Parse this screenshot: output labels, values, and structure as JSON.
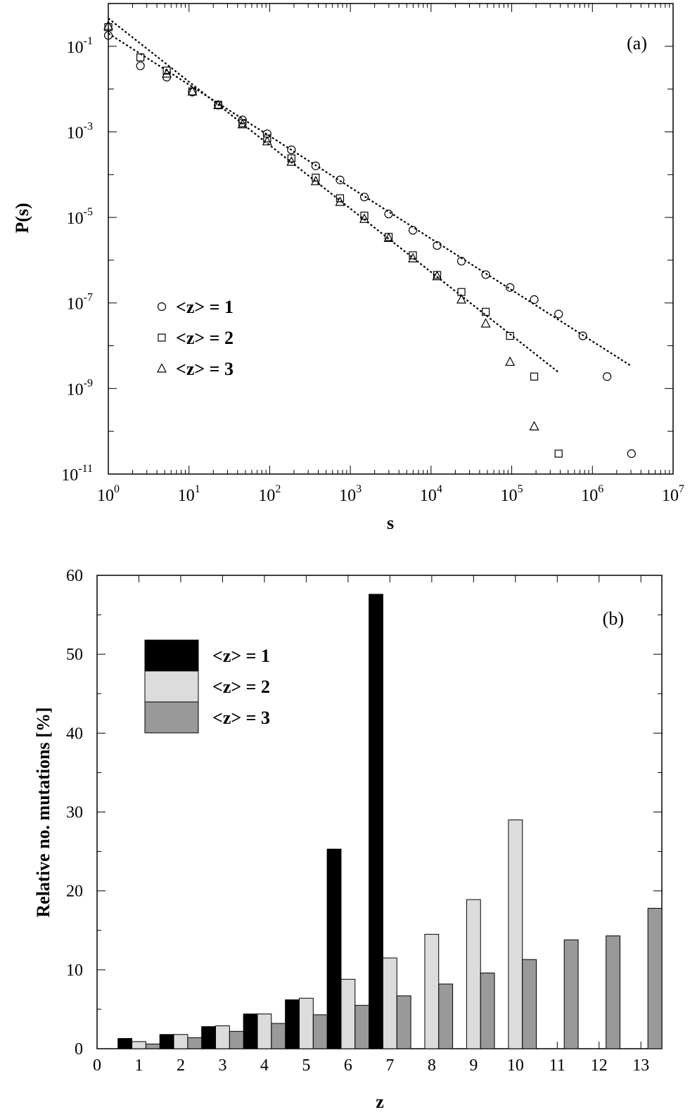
{
  "chart_data": [
    {
      "type": "scatter",
      "panel_label": "(a)",
      "xlabel": "s",
      "ylabel": "P(s)",
      "x_scale": "log",
      "y_scale": "log",
      "xlim": [
        1,
        10000000
      ],
      "ylim": [
        1e-11,
        1
      ],
      "x_ticks": [
        {
          "value": 1,
          "base": "10",
          "exp": "0"
        },
        {
          "value": 10,
          "base": "10",
          "exp": "1"
        },
        {
          "value": 100,
          "base": "10",
          "exp": "2"
        },
        {
          "value": 1000,
          "base": "10",
          "exp": "3"
        },
        {
          "value": 10000,
          "base": "10",
          "exp": "4"
        },
        {
          "value": 100000,
          "base": "10",
          "exp": "5"
        },
        {
          "value": 1000000,
          "base": "10",
          "exp": "6"
        },
        {
          "value": 10000000,
          "base": "10",
          "exp": "7"
        }
      ],
      "y_ticks": [
        {
          "value": 0.1,
          "base": "10",
          "exp": "-1"
        },
        {
          "value": 0.001,
          "base": "10",
          "exp": "-3"
        },
        {
          "value": 1e-05,
          "base": "10",
          "exp": "-5"
        },
        {
          "value": 1e-07,
          "base": "10",
          "exp": "-7"
        },
        {
          "value": 1e-09,
          "base": "10",
          "exp": "-9"
        },
        {
          "value": 1e-11,
          "base": "10",
          "exp": "-11"
        }
      ],
      "legend_position": "left-middle",
      "series": [
        {
          "name": "<z> = 1",
          "marker": "circle",
          "x": [
            1,
            2.5,
            5.3,
            11,
            23,
            46,
            93,
            186,
            372,
            745,
            1490,
            2980,
            5960,
            11900,
            23800,
            47600,
            95300,
            190000,
            381000,
            762000,
            1520000,
            3050000
          ],
          "y": [
            0.18,
            0.035,
            0.019,
            0.0085,
            0.0042,
            0.0019,
            0.0009,
            0.00038,
            0.00016,
            7.5e-05,
            3e-05,
            1.2e-05,
            5e-06,
            2.2e-06,
            9.5e-07,
            4.6e-07,
            2.3e-07,
            1.2e-07,
            5.5e-08,
            1.7e-08,
            1.9e-09,
            3e-11
          ]
        },
        {
          "name": "<z> = 2",
          "marker": "square",
          "x": [
            1,
            2.5,
            5.3,
            11,
            23,
            46,
            93,
            186,
            372,
            745,
            1490,
            2980,
            5960,
            11900,
            23800,
            47600,
            95300,
            190000,
            381000
          ],
          "y": [
            0.28,
            0.055,
            0.027,
            0.0088,
            0.0043,
            0.0016,
            0.0007,
            0.00024,
            8.5e-05,
            2.8e-05,
            1.1e-05,
            3.5e-06,
            1.3e-06,
            4.5e-07,
            1.8e-07,
            6.2e-08,
            1.7e-08,
            1.9e-09,
            3e-11
          ]
        },
        {
          "name": "<z> = 3",
          "marker": "triangle",
          "x": [
            1,
            5.3,
            11,
            23,
            46,
            93,
            186,
            372,
            745,
            1490,
            2980,
            5960,
            11900,
            23800,
            47600,
            95300,
            190000
          ],
          "y": [
            0.3,
            0.023,
            0.0088,
            0.0042,
            0.0015,
            0.0006,
            0.0002,
            7e-05,
            2.3e-05,
            9.2e-06,
            3.3e-06,
            1.1e-06,
            4.2e-07,
            1.2e-07,
            3.3e-08,
            4.2e-09,
            1.3e-10
          ]
        }
      ],
      "fit_lines": [
        {
          "from": [
            1,
            0.2
          ],
          "to": [
            3000000,
            3.4e-09
          ]
        },
        {
          "from": [
            1,
            0.45
          ],
          "to": [
            380000,
            2.4e-09
          ]
        }
      ]
    },
    {
      "type": "bar",
      "panel_label": "(b)",
      "xlabel": "z",
      "ylabel": "Relative no. mutations [%]",
      "xlim": [
        0,
        13.5
      ],
      "ylim": [
        0,
        60
      ],
      "x_ticks": [
        "0",
        "1",
        "2",
        "3",
        "4",
        "5",
        "6",
        "7",
        "8",
        "9",
        "10",
        "11",
        "12",
        "13"
      ],
      "y_ticks": [
        "0",
        "10",
        "20",
        "30",
        "40",
        "50",
        "60"
      ],
      "legend_position": "top-left",
      "categories": [
        1,
        2,
        3,
        4,
        5,
        6,
        7,
        8,
        9,
        10,
        11,
        12,
        13
      ],
      "series": [
        {
          "name": "<z> = 1",
          "color": "#000000",
          "values": [
            1.3,
            1.8,
            2.8,
            4.4,
            6.2,
            25.3,
            57.6,
            null,
            null,
            null,
            null,
            null,
            null
          ]
        },
        {
          "name": "<z> = 2",
          "color": "#dcdcdc",
          "values": [
            0.9,
            1.8,
            2.9,
            4.4,
            6.4,
            8.8,
            11.5,
            14.5,
            18.9,
            29.0,
            null,
            null,
            null
          ]
        },
        {
          "name": "<z> = 3",
          "color": "#999999",
          "values": [
            0.6,
            1.4,
            2.2,
            3.2,
            4.3,
            5.5,
            6.7,
            8.2,
            9.6,
            11.3,
            13.8,
            14.3,
            17.8
          ]
        }
      ]
    }
  ]
}
